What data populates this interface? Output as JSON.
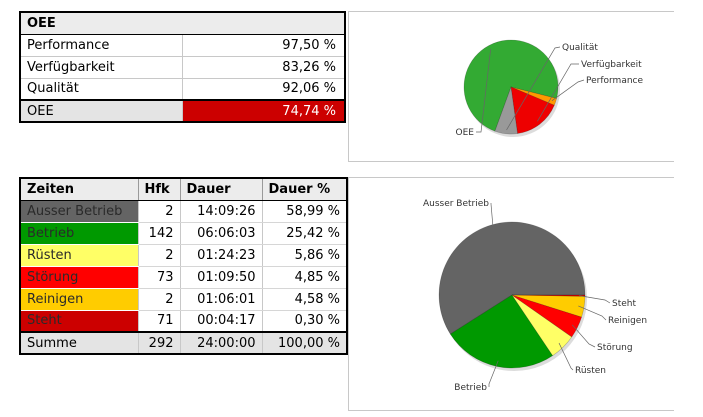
{
  "oee_table": {
    "title": "OEE",
    "rows": [
      {
        "label": "Performance",
        "value": "97,50 %"
      },
      {
        "label": "Verfügbarkeit",
        "value": "83,26 %"
      },
      {
        "label": "Qualität",
        "value": "92,06 %"
      }
    ],
    "total": {
      "label": "OEE",
      "value": "74,74 %",
      "color": "#cc0000"
    }
  },
  "zeiten_table": {
    "headers": [
      "Zeiten",
      "Hfk",
      "Dauer",
      "Dauer %"
    ],
    "rows": [
      {
        "name": "Ausser Betrieb",
        "hfk": "2",
        "dauer": "14:09:26",
        "pct": "58,99 %",
        "color": "#646464"
      },
      {
        "name": "Betrieb",
        "hfk": "142",
        "dauer": "06:06:03",
        "pct": "25,42 %",
        "color": "#009900"
      },
      {
        "name": "Rüsten",
        "hfk": "2",
        "dauer": "01:24:23",
        "pct": "5,86 %",
        "color": "#ffff66"
      },
      {
        "name": "Störung",
        "hfk": "73",
        "dauer": "01:09:50",
        "pct": "4,85 %",
        "color": "#ff0000"
      },
      {
        "name": "Reinigen",
        "hfk": "2",
        "dauer": "01:06:01",
        "pct": "4,58 %",
        "color": "#ffcc00"
      },
      {
        "name": "Steht",
        "hfk": "71",
        "dauer": "00:04:17",
        "pct": "0,30 %",
        "color": "#cc0000"
      }
    ],
    "sum": {
      "name": "Summe",
      "hfk": "292",
      "dauer": "24:00:00",
      "pct": "100,00 %"
    }
  },
  "chart_data": [
    {
      "type": "pie",
      "slices": [
        {
          "label": "OEE",
          "value": 74.74,
          "color": "#33aa33"
        },
        {
          "label": "Performance",
          "value": 2.5,
          "color": "#ff9900"
        },
        {
          "label": "Verfügbarkeit",
          "value": 16.74,
          "color": "#ee0000"
        },
        {
          "label": "Qualität",
          "value": 7.94,
          "color": "#999999"
        }
      ]
    },
    {
      "type": "pie",
      "slices": [
        {
          "label": "Ausser Betrieb",
          "value": 58.99,
          "color": "#646464"
        },
        {
          "label": "Betrieb",
          "value": 25.42,
          "color": "#009900"
        },
        {
          "label": "Rüsten",
          "value": 5.86,
          "color": "#ffff66"
        },
        {
          "label": "Störung",
          "value": 4.85,
          "color": "#ff0000"
        },
        {
          "label": "Reinigen",
          "value": 4.58,
          "color": "#ffcc00"
        },
        {
          "label": "Steht",
          "value": 0.3,
          "color": "#cc0000"
        }
      ]
    }
  ]
}
